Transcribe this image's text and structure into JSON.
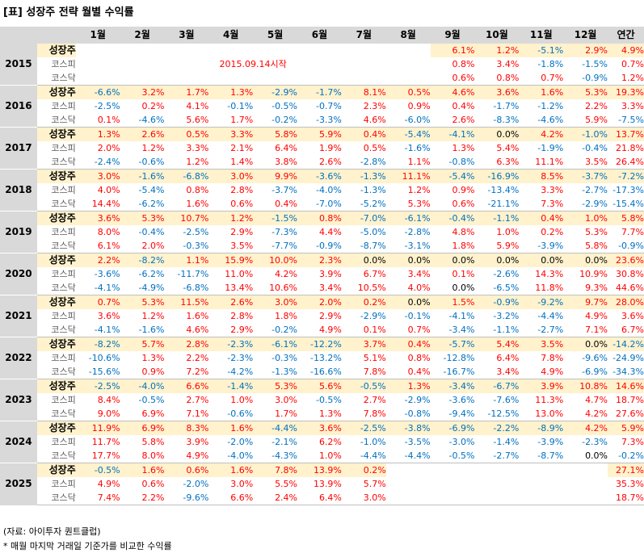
{
  "title": "[표] 성장주 전략 월별 수익률",
  "headers": [
    "1월",
    "2월",
    "3월",
    "4월",
    "5월",
    "6월",
    "7월",
    "8월",
    "9월",
    "10월",
    "11월",
    "12월",
    "연간"
  ],
  "note": "2015.09.14시작",
  "source": "(자료: 아이투자 퀀트클럽)",
  "footnote": "* 매월 마지막 거래일 기준가를 비교한 수익률",
  "colors": {
    "positive": "#ff0000",
    "negative": "#0070c0",
    "highlight": "#fff2cc",
    "header": "#d9d9d9"
  },
  "years": [
    {
      "year": "2015",
      "rows": [
        {
          "label": "성장주",
          "values": [
            "",
            "",
            "",
            "",
            "",
            "",
            "",
            "",
            "6.1%",
            "1.2%",
            "-5.1%",
            "2.9%",
            "4.9%"
          ]
        },
        {
          "label": "코스피",
          "values": [
            "",
            "",
            "",
            "",
            "",
            "",
            "",
            "",
            "0.8%",
            "3.4%",
            "-1.8%",
            "-1.5%",
            "0.7%"
          ]
        },
        {
          "label": "코스닥",
          "values": [
            "",
            "",
            "",
            "",
            "",
            "",
            "",
            "",
            "0.6%",
            "0.8%",
            "0.7%",
            "-0.9%",
            "1.2%"
          ]
        }
      ]
    },
    {
      "year": "2016",
      "rows": [
        {
          "label": "성장주",
          "values": [
            "-6.6%",
            "3.2%",
            "1.7%",
            "1.3%",
            "-2.9%",
            "-1.7%",
            "8.1%",
            "0.5%",
            "4.6%",
            "3.6%",
            "1.6%",
            "5.3%",
            "19.3%"
          ]
        },
        {
          "label": "코스피",
          "values": [
            "-2.5%",
            "0.2%",
            "4.1%",
            "-0.1%",
            "-0.5%",
            "-0.7%",
            "2.3%",
            "0.9%",
            "0.4%",
            "-1.7%",
            "-1.2%",
            "2.2%",
            "3.3%"
          ]
        },
        {
          "label": "코스닥",
          "values": [
            "0.1%",
            "-4.6%",
            "5.6%",
            "1.7%",
            "-0.2%",
            "-3.3%",
            "4.6%",
            "-6.0%",
            "2.6%",
            "-8.3%",
            "-4.6%",
            "5.9%",
            "-7.5%"
          ]
        }
      ]
    },
    {
      "year": "2017",
      "rows": [
        {
          "label": "성장주",
          "values": [
            "1.3%",
            "2.6%",
            "0.5%",
            "3.3%",
            "5.8%",
            "5.9%",
            "0.4%",
            "-5.4%",
            "-4.1%",
            "0.0%",
            "4.2%",
            "-1.0%",
            "13.7%"
          ]
        },
        {
          "label": "코스피",
          "values": [
            "2.0%",
            "1.2%",
            "3.3%",
            "2.1%",
            "6.4%",
            "1.9%",
            "0.5%",
            "-1.6%",
            "1.3%",
            "5.4%",
            "-1.9%",
            "-0.4%",
            "21.8%"
          ]
        },
        {
          "label": "코스닥",
          "values": [
            "-2.4%",
            "-0.6%",
            "1.2%",
            "1.4%",
            "3.8%",
            "2.6%",
            "-2.8%",
            "1.1%",
            "-0.8%",
            "6.3%",
            "11.1%",
            "3.5%",
            "26.4%"
          ]
        }
      ]
    },
    {
      "year": "2018",
      "rows": [
        {
          "label": "성장주",
          "values": [
            "3.0%",
            "-1.6%",
            "-6.8%",
            "3.0%",
            "9.9%",
            "-3.6%",
            "-1.3%",
            "11.1%",
            "-5.4%",
            "-16.9%",
            "8.5%",
            "-3.7%",
            "-7.2%"
          ]
        },
        {
          "label": "코스피",
          "values": [
            "4.0%",
            "-5.4%",
            "0.8%",
            "2.8%",
            "-3.7%",
            "-4.0%",
            "-1.3%",
            "1.2%",
            "0.9%",
            "-13.4%",
            "3.3%",
            "-2.7%",
            "-17.3%"
          ]
        },
        {
          "label": "코스닥",
          "values": [
            "14.4%",
            "-6.2%",
            "1.6%",
            "0.6%",
            "0.4%",
            "-7.0%",
            "-5.2%",
            "5.3%",
            "0.6%",
            "-21.1%",
            "7.3%",
            "-2.9%",
            "-15.4%"
          ]
        }
      ]
    },
    {
      "year": "2019",
      "rows": [
        {
          "label": "성장주",
          "values": [
            "3.6%",
            "5.3%",
            "10.7%",
            "1.2%",
            "-1.5%",
            "0.8%",
            "-7.0%",
            "-6.1%",
            "-0.4%",
            "-1.1%",
            "0.4%",
            "1.0%",
            "5.8%"
          ]
        },
        {
          "label": "코스피",
          "values": [
            "8.0%",
            "-0.4%",
            "-2.5%",
            "2.9%",
            "-7.3%",
            "4.4%",
            "-5.0%",
            "-2.8%",
            "4.8%",
            "1.0%",
            "0.2%",
            "5.3%",
            "7.7%"
          ]
        },
        {
          "label": "코스닥",
          "values": [
            "6.1%",
            "2.0%",
            "-0.3%",
            "3.5%",
            "-7.7%",
            "-0.9%",
            "-8.7%",
            "-3.1%",
            "1.8%",
            "5.9%",
            "-3.9%",
            "5.8%",
            "-0.9%"
          ]
        }
      ]
    },
    {
      "year": "2020",
      "rows": [
        {
          "label": "성장주",
          "values": [
            "2.2%",
            "-8.2%",
            "1.1%",
            "15.9%",
            "10.0%",
            "2.3%",
            "0.0%",
            "0.0%",
            "0.0%",
            "0.0%",
            "0.0%",
            "0.0%",
            "23.6%"
          ]
        },
        {
          "label": "코스피",
          "values": [
            "-3.6%",
            "-6.2%",
            "-11.7%",
            "11.0%",
            "4.2%",
            "3.9%",
            "6.7%",
            "3.4%",
            "0.1%",
            "-2.6%",
            "14.3%",
            "10.9%",
            "30.8%"
          ]
        },
        {
          "label": "코스닥",
          "values": [
            "-4.1%",
            "-4.9%",
            "-6.8%",
            "13.4%",
            "10.6%",
            "3.4%",
            "10.5%",
            "4.0%",
            "0.0%",
            "-6.5%",
            "11.8%",
            "9.3%",
            "44.6%"
          ]
        }
      ]
    },
    {
      "year": "2021",
      "rows": [
        {
          "label": "성장주",
          "values": [
            "0.7%",
            "5.3%",
            "11.5%",
            "2.6%",
            "3.0%",
            "2.0%",
            "0.2%",
            "0.0%",
            "1.5%",
            "-0.9%",
            "-9.2%",
            "9.7%",
            "28.0%"
          ]
        },
        {
          "label": "코스피",
          "values": [
            "3.6%",
            "1.2%",
            "1.6%",
            "2.8%",
            "1.8%",
            "2.9%",
            "-2.9%",
            "-0.1%",
            "-4.1%",
            "-3.2%",
            "-4.4%",
            "4.9%",
            "3.6%"
          ]
        },
        {
          "label": "코스닥",
          "values": [
            "-4.1%",
            "-1.6%",
            "4.6%",
            "2.9%",
            "-0.2%",
            "4.9%",
            "0.1%",
            "0.7%",
            "-3.4%",
            "-1.1%",
            "-2.7%",
            "7.1%",
            "6.7%"
          ]
        }
      ]
    },
    {
      "year": "2022",
      "rows": [
        {
          "label": "성장주",
          "values": [
            "-8.2%",
            "5.7%",
            "2.8%",
            "-2.3%",
            "-6.1%",
            "-12.2%",
            "3.7%",
            "0.4%",
            "-5.7%",
            "5.4%",
            "3.5%",
            "0.0%",
            "-14.2%"
          ]
        },
        {
          "label": "코스피",
          "values": [
            "-10.6%",
            "1.3%",
            "2.2%",
            "-2.3%",
            "-0.3%",
            "-13.2%",
            "5.1%",
            "0.8%",
            "-12.8%",
            "6.4%",
            "7.8%",
            "-9.6%",
            "-24.9%"
          ]
        },
        {
          "label": "코스닥",
          "values": [
            "-15.6%",
            "0.9%",
            "7.2%",
            "-4.2%",
            "-1.3%",
            "-16.6%",
            "7.8%",
            "0.4%",
            "-16.7%",
            "3.4%",
            "4.9%",
            "-6.9%",
            "-34.3%"
          ]
        }
      ]
    },
    {
      "year": "2023",
      "rows": [
        {
          "label": "성장주",
          "values": [
            "-2.5%",
            "-4.0%",
            "6.6%",
            "-1.4%",
            "5.3%",
            "5.6%",
            "-0.5%",
            "1.3%",
            "-3.4%",
            "-6.7%",
            "3.9%",
            "10.8%",
            "14.6%"
          ]
        },
        {
          "label": "코스피",
          "values": [
            "8.4%",
            "-0.5%",
            "2.7%",
            "1.0%",
            "3.0%",
            "-0.5%",
            "2.7%",
            "-2.9%",
            "-3.6%",
            "-7.6%",
            "11.3%",
            "4.7%",
            "18.7%"
          ]
        },
        {
          "label": "코스닥",
          "values": [
            "9.0%",
            "6.9%",
            "7.1%",
            "-0.6%",
            "1.7%",
            "1.3%",
            "7.8%",
            "-0.8%",
            "-9.4%",
            "-12.5%",
            "13.0%",
            "4.2%",
            "27.6%"
          ]
        }
      ]
    },
    {
      "year": "2024",
      "rows": [
        {
          "label": "성장주",
          "values": [
            "11.9%",
            "6.9%",
            "8.3%",
            "1.6%",
            "-4.4%",
            "3.6%",
            "-2.5%",
            "-3.8%",
            "-6.9%",
            "-2.2%",
            "-8.9%",
            "4.2%",
            "5.9%"
          ]
        },
        {
          "label": "코스피",
          "values": [
            "11.7%",
            "5.8%",
            "3.9%",
            "-2.0%",
            "-2.1%",
            "6.2%",
            "-1.0%",
            "-3.5%",
            "-3.0%",
            "-1.4%",
            "-3.9%",
            "-2.3%",
            "7.3%"
          ]
        },
        {
          "label": "코스닥",
          "values": [
            "17.7%",
            "8.0%",
            "4.9%",
            "-4.0%",
            "-4.3%",
            "1.0%",
            "-4.4%",
            "-4.4%",
            "-0.5%",
            "-2.7%",
            "-8.7%",
            "0.0%",
            "-0.2%"
          ]
        }
      ]
    },
    {
      "year": "2025",
      "rows": [
        {
          "label": "성장주",
          "values": [
            "-0.5%",
            "1.6%",
            "0.6%",
            "1.6%",
            "7.8%",
            "13.9%",
            "0.2%",
            "",
            "",
            "",
            "",
            "",
            "27.1%"
          ]
        },
        {
          "label": "코스피",
          "values": [
            "4.9%",
            "0.6%",
            "-2.0%",
            "3.0%",
            "5.5%",
            "13.9%",
            "5.7%",
            "",
            "",
            "",
            "",
            "",
            "35.3%"
          ]
        },
        {
          "label": "코스닥",
          "values": [
            "7.4%",
            "2.2%",
            "-9.6%",
            "6.6%",
            "2.4%",
            "6.4%",
            "3.0%",
            "",
            "",
            "",
            "",
            "",
            "18.7%"
          ]
        }
      ]
    }
  ]
}
